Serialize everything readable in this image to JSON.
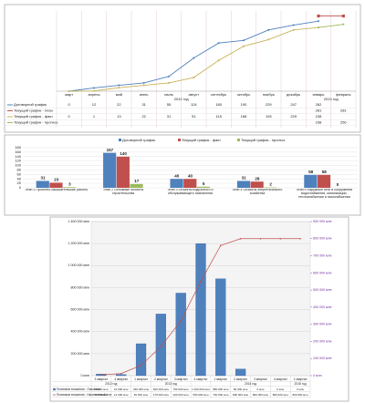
{
  "chart_data": [
    {
      "type": "line",
      "categories": [
        "март",
        "апрель",
        "май",
        "июнь",
        "июль",
        "август",
        "сентябрь",
        "октябрь",
        "ноябрь",
        "декабрь",
        "январь",
        "февраль"
      ],
      "year_labels": [
        "2012 год",
        "2013 год"
      ],
      "series": [
        {
          "name": "Договорной график",
          "color": "#4f81bd",
          "values": [
            0,
            12,
            22,
            31,
            55,
            124,
            180,
            190,
            229,
            247,
            262,
            null
          ]
        },
        {
          "name": "Текущий график - план",
          "color": "#c0504d",
          "values": [
            null,
            null,
            null,
            null,
            null,
            null,
            null,
            null,
            null,
            null,
            281,
            281
          ]
        },
        {
          "name": "Текущий график - факт",
          "color": "#c8b45a",
          "values": [
            0,
            1,
            13,
            22,
            31,
            51,
            115,
            168,
            193,
            229,
            238,
            null
          ]
        },
        {
          "name": "Текущий график - прогноз",
          "color": "#9bbb59",
          "values": [
            null,
            null,
            null,
            null,
            null,
            null,
            null,
            null,
            null,
            null,
            238,
            250
          ]
        }
      ]
    },
    {
      "type": "bar",
      "categories": [
        "Этап 1 Проектно-изыскательские работы",
        "Этап 2 Основные объекты строительства",
        "Этап 3 Объекты подсобного и обслуживающего назначения",
        "Этап 4 Объекты энергетического хозяйства",
        "Этап 5 Наружные сети и сооружения водоснабжения, канализации, теплоснабжения и газоснабжения"
      ],
      "series": [
        {
          "name": "Договорной график",
          "color": "#4f81bd",
          "values": [
            31,
            157,
            40,
            31,
            58
          ]
        },
        {
          "name": "Текущий график - факт",
          "color": "#c0504d",
          "values": [
            23,
            140,
            40,
            28,
            58
          ]
        },
        {
          "name": "Текущий график - прогноз",
          "color": "#9bbb59",
          "values": [
            3,
            17,
            5,
            2,
            0
          ]
        }
      ],
      "ylim": [
        0,
        180
      ],
      "yticks": [
        0,
        20,
        40,
        60,
        80,
        100,
        120,
        140,
        160,
        180
      ],
      "grid": true
    },
    {
      "type": "bar-line",
      "categories": [
        "3 квартал",
        "4 квартал",
        "1 квартал",
        "2 квартал",
        "3 квартал",
        "4 квартал",
        "1 квартал",
        "2 квартал",
        "3 квартал",
        "4 квартал",
        "1 квартал"
      ],
      "year_labels": [
        "2012 год",
        "2013 год",
        "2014 год",
        "2015 год"
      ],
      "series": [
        {
          "name": "Плановые вложения - Освоение",
          "color": "#4f81bd",
          "values": [
            15000,
            10000,
            290000,
            560000,
            750000,
            1200000,
            880000,
            60000,
            0,
            0,
            0
          ],
          "value_labels": [
            "15 000 млн",
            "10 000 млн",
            "290 000 млн",
            "560 000 млн",
            "750 000 млн",
            "1 200 000 млн",
            "880 000 млн",
            "60 000 млн",
            "0 млн",
            "0 млн",
            "0 млн"
          ]
        },
        {
          "name": "Плановые вложения - Накопленный итог",
          "color": "#c0504d",
          "axis": "y2",
          "values": [
            5000,
            12000,
            60000,
            170000,
            320000,
            550000,
            760000,
            800000,
            800000,
            800000,
            800000
          ],
          "value_labels": [
            "5 000 млн",
            "12 000 млн",
            "60 000 млн",
            "170 000 млн",
            "320 000 млн",
            "550 000 млн",
            "760 000 млн",
            "800 000 млн",
            "800 000 млн",
            "800 000 млн",
            "800 000 млн"
          ]
        }
      ],
      "ylim": [
        0,
        1400000
      ],
      "yticks": [
        {
          "value": 0,
          "label": "0 млн"
        },
        {
          "value": 200000,
          "label": "200 000 млн"
        },
        {
          "value": 400000,
          "label": "400 000 млн"
        },
        {
          "value": 600000,
          "label": "600 000 млн"
        },
        {
          "value": 800000,
          "label": "800 000 млн"
        },
        {
          "value": 1000000,
          "label": "1 000 000 млн"
        },
        {
          "value": 1200000,
          "label": "1 200 000 млн"
        },
        {
          "value": 1400000,
          "label": "1 400 000 млн"
        }
      ],
      "y2lim": [
        0,
        900000
      ],
      "y2ticks": [
        {
          "value": 0,
          "label": "0 млн"
        },
        {
          "value": 100000,
          "label": "100 000 млн"
        },
        {
          "value": 200000,
          "label": "200 000 млн"
        },
        {
          "value": 300000,
          "label": "300 000 млн"
        },
        {
          "value": 400000,
          "label": "400 000 млн"
        },
        {
          "value": 500000,
          "label": "500 000 млн"
        },
        {
          "value": 600000,
          "label": "600 000 млн"
        },
        {
          "value": 700000,
          "label": "700 000 млн"
        },
        {
          "value": 800000,
          "label": "800 000 млн"
        },
        {
          "value": 900000,
          "label": "900 000 млн"
        }
      ],
      "grid": true
    }
  ]
}
